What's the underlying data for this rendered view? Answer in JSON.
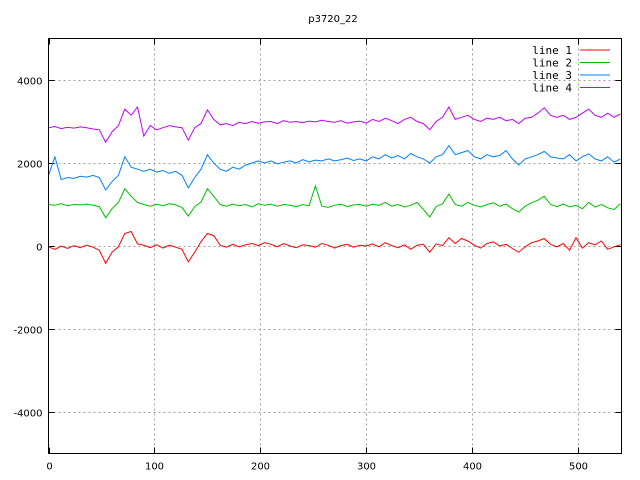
{
  "chart_data": {
    "type": "line",
    "title": "p3720_22",
    "xlabel": "",
    "ylabel": "",
    "xlim": [
      0,
      541
    ],
    "ylim": [
      -5000,
      5000
    ],
    "grid": true,
    "legend_position": "top-right",
    "x_ticks": [
      0,
      100,
      200,
      300,
      400,
      500
    ],
    "y_ticks": [
      -4000,
      -2000,
      0,
      2000,
      4000
    ],
    "x_step": 6,
    "series": [
      {
        "name": "line 1",
        "color": "#ff0000",
        "values": [
          -20,
          -80,
          0,
          -60,
          10,
          -40,
          20,
          -30,
          -100,
          -420,
          -150,
          -20,
          300,
          350,
          50,
          20,
          -40,
          30,
          -50,
          20,
          -30,
          -80,
          -380,
          -150,
          100,
          300,
          250,
          20,
          -30,
          40,
          -20,
          30,
          60,
          10,
          80,
          40,
          -20,
          60,
          0,
          -40,
          30,
          10,
          -30,
          60,
          20,
          -50,
          10,
          40,
          -30,
          20,
          0,
          50,
          -20,
          80,
          10,
          -40,
          30,
          -80,
          20,
          40,
          -150,
          50,
          10,
          200,
          60,
          180,
          120,
          20,
          -50,
          60,
          100,
          0,
          40,
          -60,
          -150,
          -20,
          80,
          120,
          180,
          40,
          -20,
          60,
          -100,
          200,
          -50,
          80,
          30,
          120,
          -80,
          -20,
          30
        ]
      },
      {
        "name": "line 2",
        "color": "#00c000",
        "values": [
          1000,
          980,
          1020,
          970,
          1000,
          990,
          1010,
          980,
          950,
          680,
          900,
          1050,
          1380,
          1200,
          1050,
          1000,
          960,
          1010,
          970,
          1020,
          990,
          930,
          720,
          950,
          1060,
          1380,
          1200,
          1000,
          960,
          1010,
          970,
          1000,
          940,
          1020,
          980,
          1010,
          960,
          1000,
          980,
          950,
          1000,
          970,
          1450,
          960,
          930,
          980,
          1010,
          950,
          990,
          1000,
          960,
          1010,
          980,
          1050,
          960,
          1000,
          940,
          980,
          1050,
          880,
          700,
          950,
          1020,
          1250,
          1000,
          960,
          1050,
          980,
          940,
          1000,
          1040,
          960,
          1010,
          900,
          820,
          960,
          1040,
          1100,
          1200,
          1000,
          950,
          1010,
          940,
          980,
          900,
          1050,
          940,
          1000,
          920,
          880,
          1020
        ]
      },
      {
        "name": "line 3",
        "color": "#0080ff",
        "values": [
          1700,
          2150,
          1600,
          1650,
          1630,
          1680,
          1660,
          1700,
          1650,
          1350,
          1550,
          1700,
          2150,
          1900,
          1850,
          1800,
          1850,
          1780,
          1820,
          1750,
          1800,
          1700,
          1400,
          1650,
          1850,
          2200,
          2000,
          1850,
          1800,
          1900,
          1850,
          1950,
          2000,
          2050,
          2000,
          2050,
          1980,
          2020,
          2050,
          2000,
          2080,
          2030,
          2070,
          2050,
          2100,
          2050,
          2080,
          2120,
          2060,
          2100,
          2050,
          2150,
          2100,
          2200,
          2120,
          2180,
          2100,
          2230,
          2150,
          2100,
          2000,
          2150,
          2200,
          2420,
          2200,
          2250,
          2300,
          2150,
          2100,
          2200,
          2150,
          2180,
          2300,
          2100,
          1950,
          2100,
          2150,
          2200,
          2280,
          2150,
          2120,
          2100,
          2200,
          2050,
          2150,
          2220,
          2100,
          2050,
          2150,
          2020,
          2100
        ]
      },
      {
        "name": "line 4",
        "color": "#c000ff",
        "values": [
          2850,
          2880,
          2830,
          2860,
          2840,
          2870,
          2850,
          2820,
          2800,
          2500,
          2750,
          2900,
          3300,
          3150,
          3350,
          2650,
          2900,
          2800,
          2850,
          2900,
          2870,
          2850,
          2550,
          2850,
          2950,
          3280,
          3050,
          2920,
          2950,
          2900,
          2980,
          2950,
          3000,
          2960,
          2990,
          3000,
          2950,
          3020,
          2980,
          3000,
          2970,
          3010,
          2990,
          3030,
          3000,
          2980,
          3020,
          2960,
          2990,
          3010,
          2960,
          3050,
          3000,
          3080,
          3020,
          2950,
          3050,
          3100,
          3000,
          2950,
          2800,
          3000,
          3100,
          3350,
          3050,
          3100,
          3150,
          3050,
          3000,
          3080,
          3050,
          3100,
          3020,
          3050,
          2950,
          3080,
          3100,
          3200,
          3330,
          3150,
          3100,
          3150,
          3050,
          3100,
          3200,
          3300,
          3150,
          3100,
          3200,
          3100,
          3180
        ]
      }
    ]
  }
}
